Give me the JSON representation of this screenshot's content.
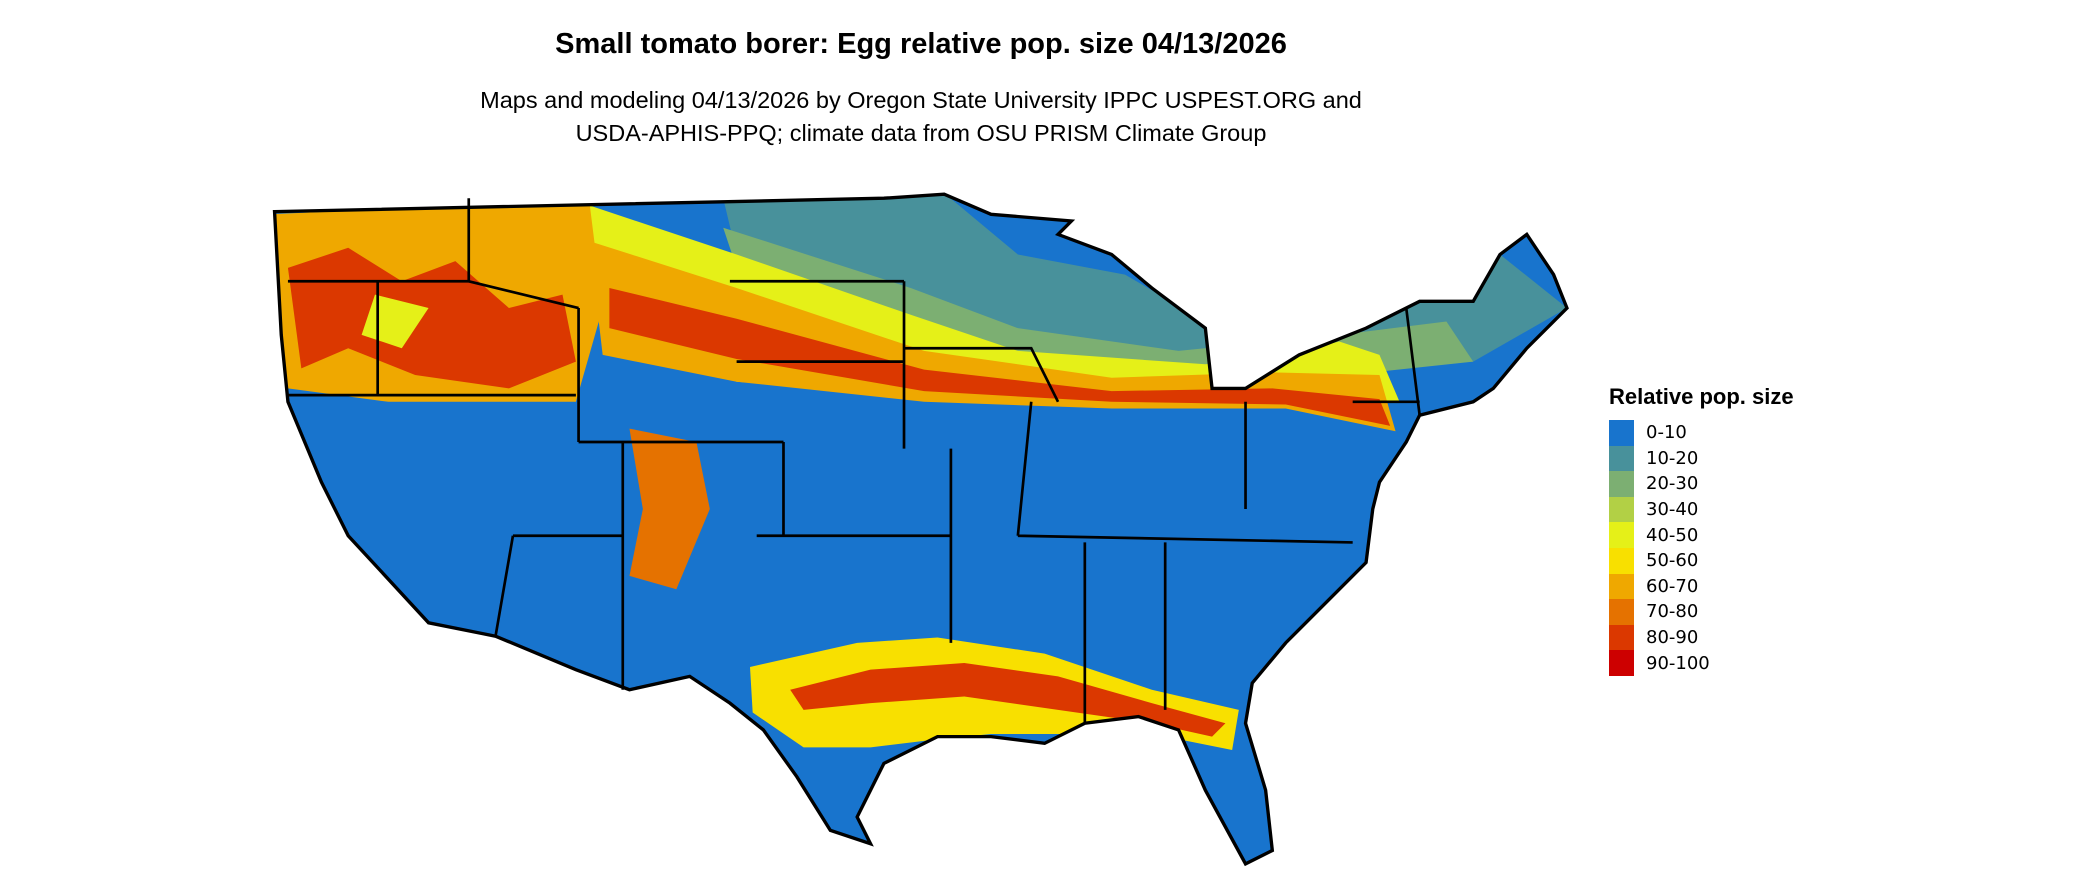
{
  "title": "Small tomato borer: Egg relative pop. size 04/13/2026",
  "subtitle": [
    "Maps and modeling 04/13/2026 by Oregon State University IPPC USPEST.ORG and",
    "USDA-APHIS-PPQ; climate data from OSU PRISM Climate Group"
  ],
  "legend": {
    "title": "Relative pop. size",
    "items": [
      {
        "label": "0-10",
        "color": "#1874CD"
      },
      {
        "label": "10-20",
        "color": "#48919B"
      },
      {
        "label": "20-30",
        "color": "#7CAF72"
      },
      {
        "label": "30-40",
        "color": "#B2D045"
      },
      {
        "label": "40-50",
        "color": "#E5F018"
      },
      {
        "label": "50-60",
        "color": "#F8E000"
      },
      {
        "label": "60-70",
        "color": "#EFA800"
      },
      {
        "label": "70-80",
        "color": "#E57200"
      },
      {
        "label": "80-90",
        "color": "#DB3800"
      },
      {
        "label": "90-100",
        "color": "#CD0000"
      }
    ]
  }
}
